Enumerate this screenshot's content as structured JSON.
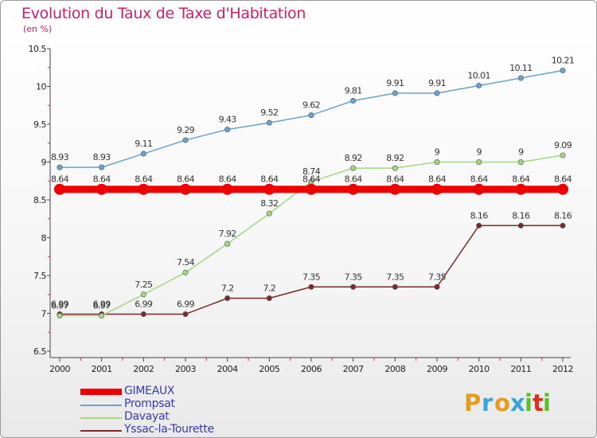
{
  "chart_data": {
    "type": "line",
    "title": "Evolution du Taux de Taxe d'Habitation",
    "subtitle": "(en %)",
    "x": [
      "2000",
      "2001",
      "2002",
      "2003",
      "2004",
      "2005",
      "2006",
      "2007",
      "2008",
      "2009",
      "2010",
      "2011",
      "2012"
    ],
    "yticks": [
      "6.5",
      "7",
      "7.5",
      "8",
      "8.5",
      "9",
      "9.5",
      "10",
      "10.5"
    ],
    "ylim": [
      6.5,
      10.5
    ],
    "grid": false,
    "legend_position": "bottom-left",
    "series": [
      {
        "name": "GIMEAUX",
        "color": "#ee0000",
        "values": [
          8.64,
          8.64,
          8.64,
          8.64,
          8.64,
          8.64,
          8.64,
          8.64,
          8.64,
          8.64,
          8.64,
          8.64,
          8.64
        ],
        "labels": [
          "8.64",
          "8.64",
          "8.64",
          "8.64",
          "8.64",
          "8.64",
          "8.64",
          "8.64",
          "8.64",
          "8.64",
          "8.64",
          "8.64",
          "8.64"
        ]
      },
      {
        "name": "Prompsat",
        "color": "#6aa2d0",
        "values": [
          8.93,
          8.93,
          9.11,
          9.29,
          9.43,
          9.52,
          9.62,
          9.81,
          9.91,
          9.91,
          10.01,
          10.11,
          10.21
        ],
        "labels": [
          "8.93",
          "8.93",
          "9.11",
          "9.29",
          "9.43",
          "9.52",
          "9.62",
          "9.81",
          "9.91",
          "9.91",
          "10.01",
          "10.11",
          "10.21"
        ]
      },
      {
        "name": "Davayat",
        "color": "#a2d880",
        "values": [
          6.97,
          6.97,
          7.25,
          7.54,
          7.92,
          8.32,
          8.74,
          8.92,
          8.92,
          9,
          9,
          9,
          9.09
        ],
        "labels": [
          "6.97",
          "6.97",
          "7.25",
          "7.54",
          "7.92",
          "8.32",
          "8.74",
          "8.92",
          "8.92",
          "9",
          "9",
          "9",
          "9.09"
        ]
      },
      {
        "name": "Yssac-la-Tourette",
        "color": "#7a2a2a",
        "values": [
          6.99,
          6.99,
          6.99,
          6.99,
          7.2,
          7.2,
          7.35,
          7.35,
          7.35,
          7.35,
          8.16,
          8.16,
          8.16
        ],
        "labels": [
          "6.99",
          "6.99",
          "6.99",
          "6.99",
          "7.2",
          "7.2",
          "7.35",
          "7.35",
          "7.35",
          "7.35",
          "8.16",
          "8.16",
          "8.16"
        ]
      }
    ]
  },
  "logo": {
    "letters": [
      {
        "ch": "P",
        "color": "#e89a1c"
      },
      {
        "ch": "r",
        "color": "#3aa4dc"
      },
      {
        "ch": "o",
        "color": "#e89a1c"
      },
      {
        "ch": "x",
        "color": "#3aa4dc"
      },
      {
        "ch": "i",
        "color": "#5bbf2c"
      },
      {
        "ch": "t",
        "color": "#d9331c"
      },
      {
        "ch": "i",
        "color": "#5bbf2c"
      }
    ]
  }
}
